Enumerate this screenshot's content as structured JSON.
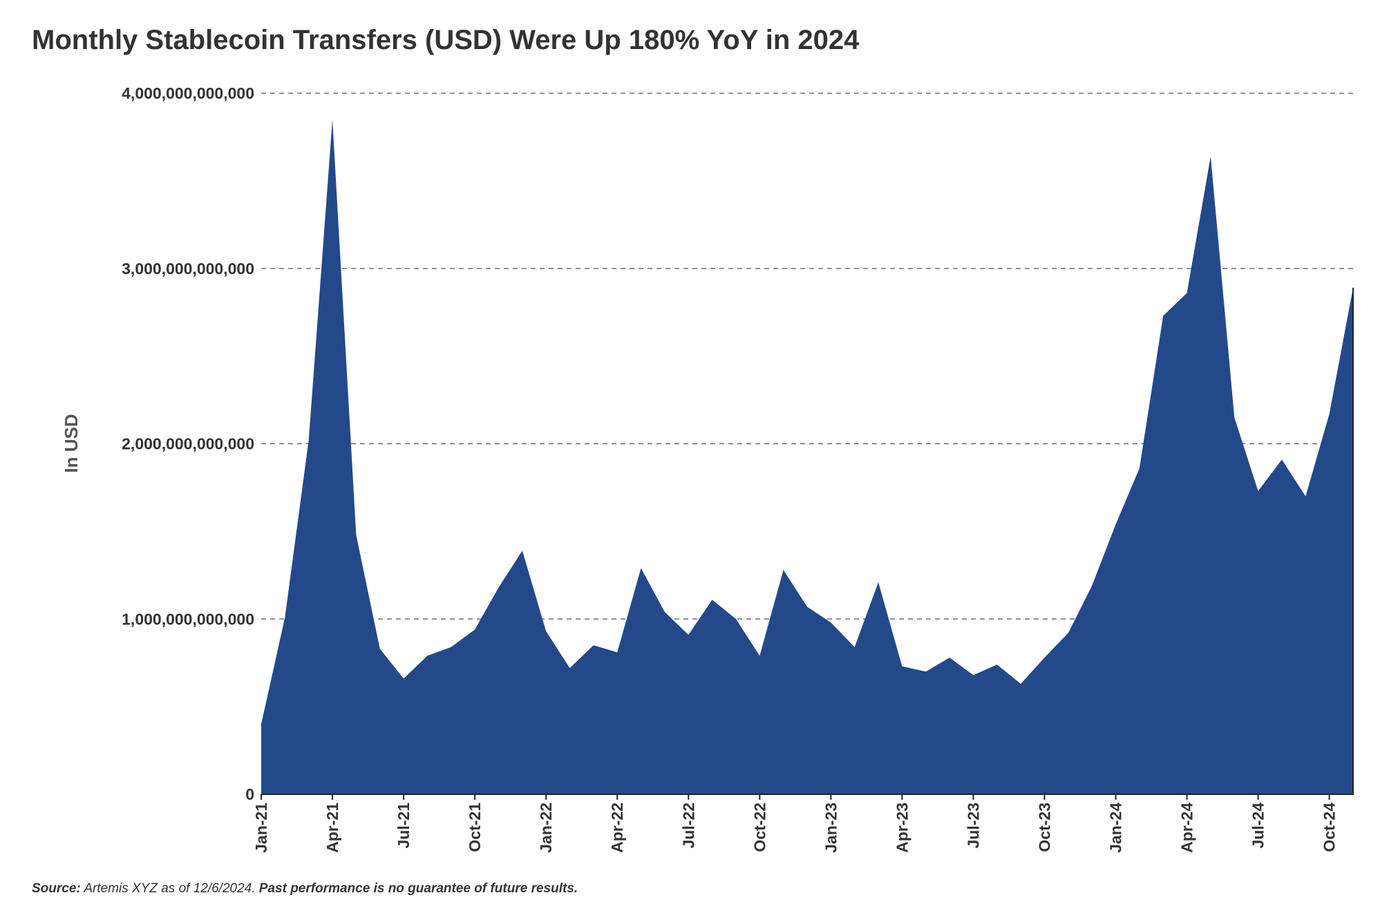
{
  "title": "Monthly Stablecoin Transfers (USD) Were Up 180% YoY in 2024",
  "footer": {
    "source_label": "Source:",
    "source_text": " Artemis XYZ as of 12/6/2024. ",
    "disclaimer": "Past performance is no guarantee of future results."
  },
  "colors": {
    "area": "#23498B",
    "grid": "#555555",
    "axis": "#222222"
  },
  "chart_data": {
    "type": "area",
    "title": "Monthly Stablecoin Transfers (USD) Were Up 180% YoY in 2024",
    "xlabel": "",
    "ylabel": "In USD",
    "ylim": [
      0,
      4000000000000
    ],
    "yticks": [
      0,
      1000000000000,
      2000000000000,
      3000000000000,
      4000000000000
    ],
    "ytick_labels": [
      "0",
      "1,000,000,000,000",
      "2,000,000,000,000",
      "3,000,000,000,000",
      "4,000,000,000,000"
    ],
    "grid": "horizontal dashed",
    "xtick_labels": [
      {
        "label": "Jan-21",
        "month_index": 0
      },
      {
        "label": "Apr-21",
        "month_index": 3
      },
      {
        "label": "Jul-21",
        "month_index": 6
      },
      {
        "label": "Oct-21",
        "month_index": 9
      },
      {
        "label": "Jan-22",
        "month_index": 12
      },
      {
        "label": "Apr-22",
        "month_index": 15
      },
      {
        "label": "Jul-22",
        "month_index": 18
      },
      {
        "label": "Oct-22",
        "month_index": 21
      },
      {
        "label": "Jan-23",
        "month_index": 24
      },
      {
        "label": "Apr-23",
        "month_index": 27
      },
      {
        "label": "Jul-23",
        "month_index": 30
      },
      {
        "label": "Oct-23",
        "month_index": 33
      },
      {
        "label": "Jan-24",
        "month_index": 36
      },
      {
        "label": "Apr-24",
        "month_index": 39
      },
      {
        "label": "Jul-24",
        "month_index": 42
      },
      {
        "label": "Oct-24",
        "month_index": 45
      }
    ],
    "series": [
      {
        "name": "Monthly Stablecoin Transfers (USD)",
        "values": [
          400000000000,
          1010000000000,
          2020000000000,
          3850000000000,
          1480000000000,
          830000000000,
          660000000000,
          790000000000,
          840000000000,
          940000000000,
          1180000000000,
          1390000000000,
          930000000000,
          720000000000,
          850000000000,
          810000000000,
          1290000000000,
          1040000000000,
          910000000000,
          1110000000000,
          1000000000000,
          790000000000,
          1280000000000,
          1070000000000,
          980000000000,
          840000000000,
          1210000000000,
          730000000000,
          700000000000,
          780000000000,
          680000000000,
          740000000000,
          630000000000,
          780000000000,
          920000000000,
          1190000000000,
          1540000000000,
          1860000000000,
          2730000000000,
          2860000000000,
          3640000000000,
          2150000000000,
          1730000000000,
          1910000000000,
          1700000000000,
          2170000000000,
          2890000000000
        ]
      }
    ]
  }
}
